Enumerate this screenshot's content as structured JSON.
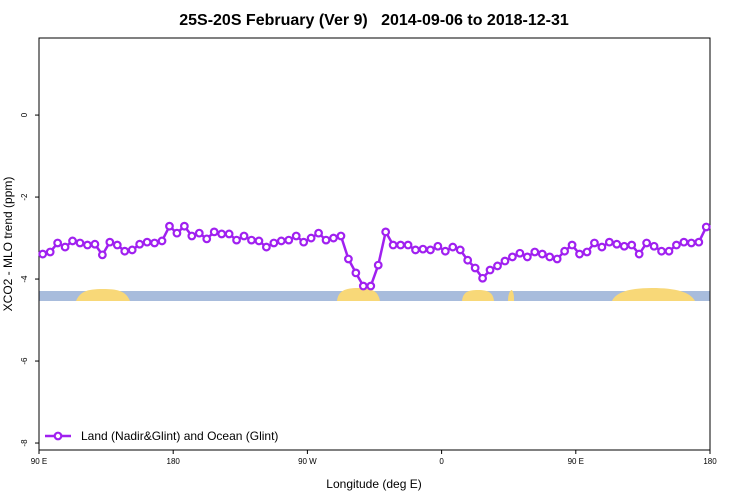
{
  "chart_data": {
    "type": "line",
    "title": "25S-20S February (Ver 9)   2014-09-06 to 2018-12-31",
    "xlabel": "Longitude (deg E)",
    "ylabel": "XCO2 - MLO trend (ppm)",
    "xlim": [
      90,
      540
    ],
    "ylim": [
      -8.17,
      1.88
    ],
    "xticks": [
      {
        "value": 90,
        "label": "90 E"
      },
      180,
      {
        "value": 270,
        "label": "90 W"
      },
      {
        "value": 360,
        "label": "0"
      },
      {
        "value": 450,
        "label": "90 E"
      },
      {
        "value": 540,
        "label": "180"
      }
    ],
    "yticks": [
      -8,
      -6,
      -4,
      -2,
      0
    ],
    "legend": "bottom-left",
    "x": [
      92.5,
      97.5,
      102.5,
      107.5,
      112.5,
      117.5,
      122.5,
      127.5,
      132.5,
      137.5,
      142.5,
      147.5,
      152.5,
      157.5,
      162.5,
      167.5,
      172.5,
      177.5,
      182.5,
      187.5,
      192.5,
      197.5,
      202.5,
      207.5,
      212.5,
      217.5,
      222.5,
      227.5,
      232.5,
      237.5,
      242.5,
      247.5,
      252.5,
      257.5,
      262.5,
      267.5,
      272.5,
      277.5,
      282.5,
      287.5,
      292.5,
      297.5,
      302.5,
      307.5,
      312.5,
      317.5,
      322.5,
      327.5,
      332.5,
      337.5,
      342.5,
      347.5,
      352.5,
      357.5,
      362.5,
      367.5,
      372.5,
      377.5,
      382.5,
      387.5,
      392.5,
      397.5,
      402.5,
      407.5,
      412.5,
      417.5,
      422.5,
      427.5,
      432.5,
      437.5,
      442.5,
      447.5,
      452.5,
      457.5,
      462.5,
      467.5,
      472.5,
      477.5,
      482.5,
      487.5,
      492.5,
      497.5,
      502.5,
      507.5,
      512.5,
      517.5,
      522.5,
      527.5,
      532.5,
      537.5
    ],
    "series": [
      {
        "name": "Land (Nadir&Glint) and Ocean (Glint)",
        "color": "#a020f0",
        "values": [
          -3.39,
          -3.34,
          -3.12,
          -3.22,
          -3.07,
          -3.12,
          -3.17,
          -3.15,
          -3.41,
          -3.1,
          -3.17,
          -3.32,
          -3.29,
          -3.15,
          -3.1,
          -3.12,
          -3.07,
          -2.71,
          -2.88,
          -2.71,
          -2.95,
          -2.88,
          -3.02,
          -2.85,
          -2.9,
          -2.9,
          -3.05,
          -2.95,
          -3.05,
          -3.07,
          -3.22,
          -3.12,
          -3.07,
          -3.05,
          -2.95,
          -3.1,
          -3.0,
          -2.88,
          -3.05,
          -3.0,
          -2.95,
          -3.51,
          -3.85,
          -4.17,
          -4.17,
          -3.66,
          -2.85,
          -3.17,
          -3.17,
          -3.17,
          -3.29,
          -3.27,
          -3.29,
          -3.2,
          -3.32,
          -3.22,
          -3.29,
          -3.54,
          -3.73,
          -3.98,
          -3.78,
          -3.68,
          -3.56,
          -3.46,
          -3.37,
          -3.46,
          -3.34,
          -3.39,
          -3.46,
          -3.51,
          -3.32,
          -3.17,
          -3.39,
          -3.34,
          -3.12,
          -3.22,
          -3.1,
          -3.15,
          -3.2,
          -3.17,
          -3.39,
          -3.12,
          -3.2,
          -3.32,
          -3.32,
          -3.17,
          -3.1,
          -3.12,
          -3.1,
          -2.73
        ]
      }
    ]
  }
}
